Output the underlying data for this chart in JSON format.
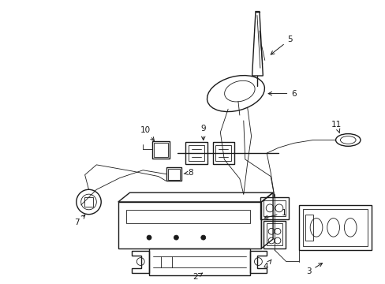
{
  "background_color": "#ffffff",
  "line_color": "#1a1a1a",
  "figsize": [
    4.89,
    3.6
  ],
  "dpi": 100,
  "lw_main": 1.0,
  "lw_thin": 0.6,
  "lw_thick": 1.3,
  "fs_label": 7.5
}
